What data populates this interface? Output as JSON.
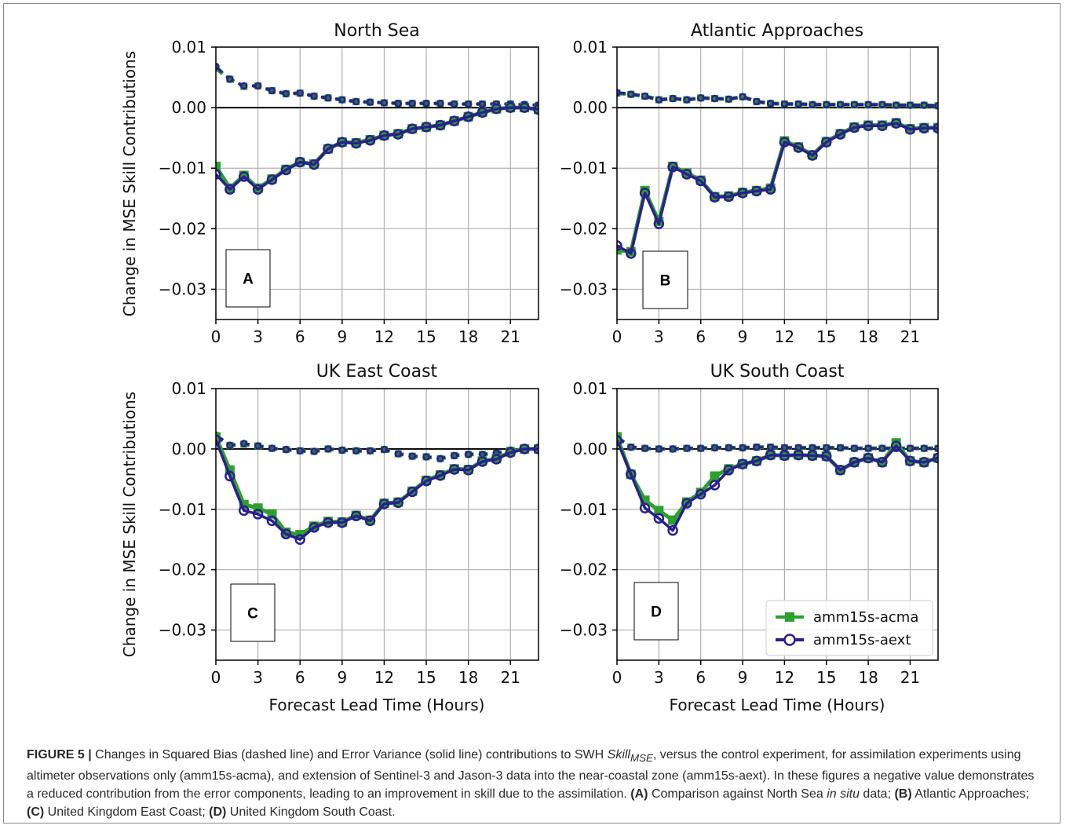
{
  "figure": {
    "ylabel": "Change in MSE Skill Contributions",
    "xlabel": "Forecast Lead Time (Hours)"
  },
  "colors": {
    "acma": "#2ca02c",
    "aext": "#2a1f8f",
    "grid": "#b0b0b0",
    "zero": "#000000"
  },
  "legend": {
    "acma": "amm15s-acma",
    "aext": "amm15s-aext"
  },
  "chart_data": [
    {
      "type": "line",
      "title": "North Sea",
      "letter": "A",
      "xlim": [
        0,
        23
      ],
      "ylim": [
        -0.035,
        0.01
      ],
      "xticks": [
        0,
        3,
        6,
        9,
        12,
        15,
        18,
        21
      ],
      "yticks": [
        -0.03,
        -0.02,
        -0.01,
        0.0,
        0.01
      ],
      "ytick_labels": [
        "−0.03",
        "−0.02",
        "−0.01",
        "0.00",
        "0.01"
      ],
      "x": [
        0,
        1,
        2,
        3,
        4,
        5,
        6,
        7,
        8,
        9,
        10,
        11,
        12,
        13,
        14,
        15,
        16,
        17,
        18,
        19,
        20,
        21,
        22,
        23
      ],
      "series": [
        {
          "name": "amm15s-acma",
          "component": "squared-bias",
          "values": [
            0.0065,
            0.0047,
            0.0035,
            0.0036,
            0.0028,
            0.0023,
            0.0024,
            0.0019,
            0.0016,
            0.0013,
            0.001,
            0.0009,
            0.0008,
            0.0007,
            0.0007,
            0.0007,
            0.0007,
            0.0006,
            0.0006,
            0.0006,
            0.0006,
            0.0006,
            0.0005,
            0.0004
          ]
        },
        {
          "name": "amm15s-aext",
          "component": "squared-bias",
          "values": [
            0.0068,
            0.0047,
            0.0036,
            0.0036,
            0.0028,
            0.0023,
            0.0024,
            0.0019,
            0.0016,
            0.0013,
            0.001,
            0.0009,
            0.0008,
            0.0007,
            0.0007,
            0.0007,
            0.0007,
            0.0006,
            0.0006,
            0.0006,
            0.0006,
            0.0006,
            0.0005,
            0.0004
          ]
        },
        {
          "name": "amm15s-acma",
          "component": "error-variance",
          "values": [
            -0.0097,
            -0.0133,
            -0.0112,
            -0.0133,
            -0.0118,
            -0.0102,
            -0.009,
            -0.0093,
            -0.0068,
            -0.0057,
            -0.0058,
            -0.0053,
            -0.0046,
            -0.0043,
            -0.0035,
            -0.0032,
            -0.0029,
            -0.0022,
            -0.0015,
            -0.0008,
            -0.0002,
            0.0,
            0.0,
            -0.0003
          ]
        },
        {
          "name": "amm15s-aext",
          "component": "error-variance",
          "values": [
            -0.011,
            -0.0135,
            -0.0114,
            -0.0135,
            -0.0119,
            -0.0103,
            -0.009,
            -0.0094,
            -0.0068,
            -0.0057,
            -0.0059,
            -0.0054,
            -0.0046,
            -0.0044,
            -0.0035,
            -0.0032,
            -0.0029,
            -0.0022,
            -0.0015,
            -0.0008,
            -0.0002,
            0.0,
            0.0,
            -0.0003
          ]
        }
      ]
    },
    {
      "type": "line",
      "title": "Atlantic Approaches",
      "letter": "B",
      "xlim": [
        0,
        23
      ],
      "ylim": [
        -0.035,
        0.01
      ],
      "xticks": [
        0,
        3,
        6,
        9,
        12,
        15,
        18,
        21
      ],
      "yticks": [
        -0.03,
        -0.02,
        -0.01,
        0.0,
        0.01
      ],
      "ytick_labels": [
        "−0.03",
        "−0.02",
        "−0.01",
        "0.00",
        "0.01"
      ],
      "x": [
        0,
        1,
        2,
        3,
        4,
        5,
        6,
        7,
        8,
        9,
        10,
        11,
        12,
        13,
        14,
        15,
        16,
        17,
        18,
        19,
        20,
        21,
        22,
        23
      ],
      "series": [
        {
          "name": "amm15s-acma",
          "component": "squared-bias",
          "values": [
            0.0024,
            0.0022,
            0.0019,
            0.0013,
            0.0015,
            0.0013,
            0.0016,
            0.0015,
            0.0014,
            0.0018,
            0.001,
            0.0007,
            0.0006,
            0.0006,
            0.0005,
            0.0005,
            0.0005,
            0.0005,
            0.0005,
            0.0005,
            0.0004,
            0.0004,
            0.0004,
            0.0003
          ]
        },
        {
          "name": "amm15s-aext",
          "component": "squared-bias",
          "values": [
            0.0025,
            0.0022,
            0.0019,
            0.0013,
            0.0015,
            0.0013,
            0.0016,
            0.0015,
            0.0014,
            0.0018,
            0.001,
            0.0007,
            0.0006,
            0.0006,
            0.0005,
            0.0005,
            0.0005,
            0.0005,
            0.0005,
            0.0005,
            0.0004,
            0.0004,
            0.0004,
            0.0003
          ]
        },
        {
          "name": "amm15s-acma",
          "component": "error-variance",
          "values": [
            -0.0235,
            -0.0238,
            -0.0137,
            -0.0188,
            -0.0097,
            -0.0108,
            -0.012,
            -0.0147,
            -0.0146,
            -0.014,
            -0.0137,
            -0.0133,
            -0.0055,
            -0.0065,
            -0.0078,
            -0.0056,
            -0.0043,
            -0.0032,
            -0.0029,
            -0.0029,
            -0.0025,
            -0.0035,
            -0.0033,
            -0.0033
          ]
        },
        {
          "name": "amm15s-aext",
          "component": "error-variance",
          "values": [
            -0.0228,
            -0.0241,
            -0.0141,
            -0.0192,
            -0.0098,
            -0.011,
            -0.0121,
            -0.0148,
            -0.0147,
            -0.0141,
            -0.0138,
            -0.0135,
            -0.0057,
            -0.0066,
            -0.0079,
            -0.0057,
            -0.0044,
            -0.0033,
            -0.003,
            -0.003,
            -0.0026,
            -0.0036,
            -0.0034,
            -0.0034
          ]
        }
      ]
    },
    {
      "type": "line",
      "title": "UK East Coast",
      "letter": "C",
      "xlim": [
        0,
        23
      ],
      "ylim": [
        -0.035,
        0.01
      ],
      "xticks": [
        0,
        3,
        6,
        9,
        12,
        15,
        18,
        21
      ],
      "yticks": [
        -0.03,
        -0.02,
        -0.01,
        0.0,
        0.01
      ],
      "ytick_labels": [
        "−0.03",
        "−0.02",
        "−0.01",
        "0.00",
        "0.01"
      ],
      "x": [
        0,
        1,
        2,
        3,
        4,
        5,
        6,
        7,
        8,
        9,
        10,
        11,
        12,
        13,
        14,
        15,
        16,
        17,
        18,
        19,
        20,
        21,
        22,
        23
      ],
      "series": [
        {
          "name": "amm15s-acma",
          "component": "squared-bias",
          "values": [
            0.0022,
            0.0006,
            0.0008,
            0.0005,
            0.0001,
            -0.0001,
            -0.0003,
            -0.0004,
            0.0,
            -0.0002,
            -0.0003,
            -0.0003,
            -0.0001,
            -0.0008,
            -0.0012,
            -0.0013,
            -0.0016,
            -0.0011,
            -0.0009,
            -0.0009,
            -0.0007,
            -0.0002,
            0.0,
            0.0
          ]
        },
        {
          "name": "amm15s-aext",
          "component": "squared-bias",
          "values": [
            0.0023,
            0.0006,
            0.0009,
            0.0005,
            0.0001,
            -0.0001,
            -0.0003,
            -0.0004,
            0.0,
            -0.0002,
            -0.0003,
            -0.0003,
            -0.0001,
            -0.0008,
            -0.0012,
            -0.0013,
            -0.0016,
            -0.0011,
            -0.0009,
            -0.0009,
            -0.0007,
            -0.0002,
            0.0,
            0.0
          ]
        },
        {
          "name": "amm15s-acma",
          "component": "error-variance",
          "values": [
            0.002,
            -0.0035,
            -0.0092,
            -0.0098,
            -0.0108,
            -0.0138,
            -0.0142,
            -0.0128,
            -0.012,
            -0.0121,
            -0.011,
            -0.0118,
            -0.009,
            -0.0088,
            -0.007,
            -0.0052,
            -0.0043,
            -0.0033,
            -0.0034,
            -0.002,
            -0.0016,
            -0.0005,
            0.0,
            0.0
          ]
        },
        {
          "name": "amm15s-aext",
          "component": "error-variance",
          "values": [
            0.0015,
            -0.0045,
            -0.0102,
            -0.0108,
            -0.0119,
            -0.0141,
            -0.015,
            -0.013,
            -0.0122,
            -0.0122,
            -0.0111,
            -0.0119,
            -0.0091,
            -0.0089,
            -0.0071,
            -0.0053,
            -0.0044,
            -0.0034,
            -0.0035,
            -0.0021,
            -0.0017,
            -0.0006,
            0.0,
            0.0
          ]
        }
      ]
    },
    {
      "type": "line",
      "title": "UK South Coast",
      "letter": "D",
      "xlim": [
        0,
        23
      ],
      "ylim": [
        -0.035,
        0.01
      ],
      "xticks": [
        0,
        3,
        6,
        9,
        12,
        15,
        18,
        21
      ],
      "yticks": [
        -0.03,
        -0.02,
        -0.01,
        0.0,
        0.01
      ],
      "ytick_labels": [
        "−0.03",
        "−0.02",
        "−0.01",
        "0.00",
        "0.01"
      ],
      "x": [
        0,
        1,
        2,
        3,
        4,
        5,
        6,
        7,
        8,
        9,
        10,
        11,
        12,
        13,
        14,
        15,
        16,
        17,
        18,
        19,
        20,
        21,
        22,
        23
      ],
      "series": [
        {
          "name": "amm15s-acma",
          "component": "squared-bias",
          "values": [
            0.0019,
            0.0003,
            0.0001,
            0.0,
            0.0,
            0.0001,
            0.0001,
            0.0002,
            0.0002,
            0.0002,
            0.0003,
            0.0003,
            0.0002,
            0.0002,
            0.0002,
            0.0002,
            0.0002,
            0.0001,
            0.0001,
            0.0001,
            0.0001,
            0.0001,
            0.0001,
            0.0001
          ]
        },
        {
          "name": "amm15s-aext",
          "component": "squared-bias",
          "values": [
            0.002,
            0.0003,
            0.0001,
            0.0,
            0.0,
            0.0001,
            0.0001,
            0.0002,
            0.0002,
            0.0002,
            0.0003,
            0.0003,
            0.0002,
            0.0002,
            0.0002,
            0.0002,
            0.0002,
            0.0001,
            0.0001,
            0.0001,
            0.0001,
            0.0001,
            0.0001,
            0.0001
          ]
        },
        {
          "name": "amm15s-acma",
          "component": "error-variance",
          "values": [
            0.002,
            -0.0042,
            -0.0085,
            -0.0102,
            -0.0118,
            -0.0088,
            -0.0072,
            -0.0045,
            -0.0033,
            -0.0025,
            -0.002,
            -0.001,
            -0.0011,
            -0.001,
            -0.0011,
            -0.0012,
            -0.0035,
            -0.0022,
            -0.0015,
            -0.0022,
            0.001,
            -0.002,
            -0.0022,
            -0.0015
          ]
        },
        {
          "name": "amm15s-aext",
          "component": "error-variance",
          "values": [
            0.0014,
            -0.0042,
            -0.0098,
            -0.0115,
            -0.0135,
            -0.009,
            -0.0075,
            -0.006,
            -0.0035,
            -0.0025,
            -0.002,
            -0.001,
            -0.0011,
            -0.001,
            -0.0011,
            -0.0012,
            -0.0035,
            -0.0022,
            -0.0015,
            -0.0022,
            0.0005,
            -0.002,
            -0.0022,
            -0.0015
          ]
        }
      ]
    }
  ],
  "caption": {
    "label": "FIGURE 5 |",
    "p1": " Changes in Squared Bias (dashed line) and Error Variance (solid line) contributions to SWH ",
    "skill": "Skill",
    "skill_sub": "MSE",
    "p2": ", versus the control experiment, for assimilation experiments using altimeter observations only (amm15s-acma), and extension of Sentinel-3 and Jason-3 data into the near-coastal zone (amm15s-aext). In these figures a negative value demonstrates a reduced contribution from the error components, leading to an improvement in skill due to the assimilation. ",
    "a_label": "(A)",
    "a_text": " Comparison against North Sea ",
    "in_situ": "in situ",
    "a_text2": " data; ",
    "b_label": "(B)",
    "b_text": " Atlantic Approaches; ",
    "c_label": "(C)",
    "c_text": " United Kingdom East Coast; ",
    "d_label": "(D)",
    "d_text": " United Kingdom South Coast."
  }
}
